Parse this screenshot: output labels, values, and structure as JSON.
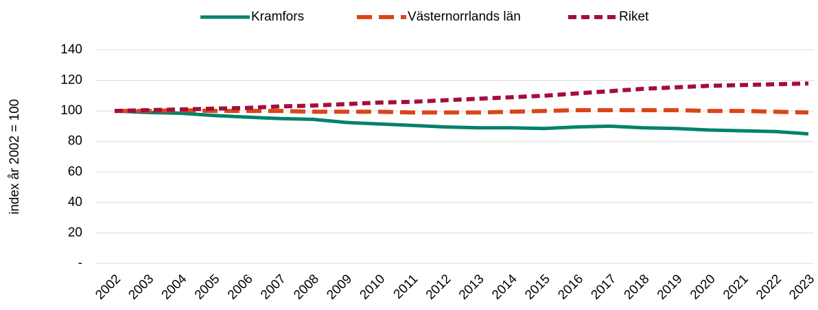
{
  "chart_data": {
    "type": "line",
    "ylabel": "index år 2002 = 100",
    "categories": [
      "2002",
      "2003",
      "2004",
      "2005",
      "2006",
      "2007",
      "2008",
      "2009",
      "2010",
      "2011",
      "2012",
      "2013",
      "2014",
      "2015",
      "2016",
      "2017",
      "2018",
      "2019",
      "2020",
      "2021",
      "2022",
      "2023"
    ],
    "series": [
      {
        "name": "Kramfors",
        "color": "#00826b",
        "values": [
          100,
          99,
          98.5,
          97,
          96,
          95,
          94.5,
          92.5,
          91.5,
          90.5,
          89.5,
          89,
          89,
          88.5,
          89.5,
          90,
          89,
          88.5,
          87.5,
          87,
          86.5,
          85
        ]
      },
      {
        "name": "Västernorrlands län",
        "color": "#d9461a",
        "values": [
          100,
          100,
          100.5,
          100,
          100,
          100,
          99.5,
          99.5,
          99.5,
          99,
          99,
          99,
          99.5,
          100,
          100.5,
          100.5,
          100.5,
          100.5,
          100,
          100,
          99.5,
          99
        ]
      },
      {
        "name": "Riket",
        "color": "#a50d3e",
        "values": [
          100,
          100.5,
          101,
          101.5,
          102,
          103,
          103.5,
          104.5,
          105.5,
          106,
          107,
          108,
          109,
          110,
          111.5,
          113,
          114.5,
          115.5,
          116.5,
          117,
          117.5,
          118
        ]
      }
    ],
    "ylim": [
      0,
      140
    ],
    "yticks": [
      {
        "value": 0,
        "label": "-"
      },
      20,
      40,
      60,
      80,
      100,
      120,
      140
    ],
    "grid": true,
    "legend": "top"
  }
}
